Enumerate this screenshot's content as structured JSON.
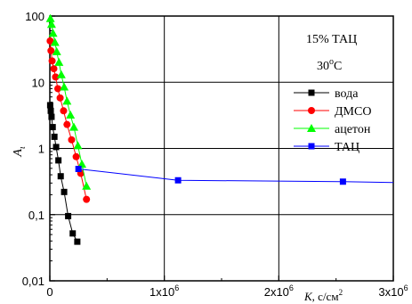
{
  "chart_data": {
    "type": "scatter",
    "annotation": {
      "line1": "15% ТАЦ",
      "line2_base": "30",
      "line2_sup": "o",
      "line2_tail": "C"
    },
    "xlabel": {
      "letter": "K",
      "unit": ", с/см",
      "unit_sup": "2"
    },
    "ylabel": {
      "letter": "A",
      "sub": "ι"
    },
    "x_scale": "linear",
    "y_scale": "log",
    "xlim": [
      0,
      3000000
    ],
    "ylim": [
      0.01,
      100
    ],
    "grid": true,
    "legend_position": "top-right",
    "x_ticks": [
      {
        "value": 0,
        "label": "0",
        "sup": ""
      },
      {
        "value": 1000000,
        "label": "1x10",
        "sup": "6"
      },
      {
        "value": 2000000,
        "label": "2x10",
        "sup": "6"
      },
      {
        "value": 3000000,
        "label": "3x10",
        "sup": "6"
      }
    ],
    "y_ticks": [
      {
        "value": 0.01,
        "label": "0,01"
      },
      {
        "value": 0.1,
        "label": "0,1"
      },
      {
        "value": 1,
        "label": "1"
      },
      {
        "value": 10,
        "label": "10"
      },
      {
        "value": 100,
        "label": "100"
      }
    ],
    "series": [
      {
        "name": "вода",
        "color": "#000000",
        "marker": "square",
        "points": [
          [
            3000,
            4.5
          ],
          [
            8000,
            3.7
          ],
          [
            15000,
            3.0
          ],
          [
            25000,
            2.1
          ],
          [
            40000,
            1.5
          ],
          [
            55000,
            1.05
          ],
          [
            75000,
            0.66
          ],
          [
            95000,
            0.38
          ],
          [
            125000,
            0.22
          ],
          [
            160000,
            0.095
          ],
          [
            200000,
            0.052
          ],
          [
            240000,
            0.039
          ]
        ]
      },
      {
        "name": "ДМСО",
        "color": "#ff0000",
        "marker": "circle",
        "points": [
          [
            3000,
            42
          ],
          [
            10000,
            30
          ],
          [
            20000,
            21
          ],
          [
            35000,
            16
          ],
          [
            50000,
            12
          ],
          [
            70000,
            8.0
          ],
          [
            90000,
            5.8
          ],
          [
            120000,
            3.7
          ],
          [
            150000,
            2.3
          ],
          [
            190000,
            1.35
          ],
          [
            230000,
            0.75
          ],
          [
            270000,
            0.42
          ],
          [
            320000,
            0.17
          ]
        ]
      },
      {
        "name": "ацетон",
        "color": "#00ff00",
        "marker": "triangle",
        "points": [
          [
            5000,
            92
          ],
          [
            15000,
            75
          ],
          [
            28000,
            55
          ],
          [
            45000,
            40
          ],
          [
            60000,
            29
          ],
          [
            80000,
            20
          ],
          [
            100000,
            13
          ],
          [
            125000,
            8.5
          ],
          [
            150000,
            5.2
          ],
          [
            180000,
            3.2
          ],
          [
            210000,
            2.1
          ],
          [
            245000,
            1.1
          ],
          [
            280000,
            0.58
          ],
          [
            320000,
            0.27
          ]
        ]
      },
      {
        "name": "ТАЦ",
        "color": "#0000ff",
        "marker": "square",
        "points": [
          [
            250000,
            0.49
          ],
          [
            1120000,
            0.33
          ],
          [
            2560000,
            0.315
          ],
          [
            3000000,
            0.305
          ]
        ]
      }
    ]
  }
}
